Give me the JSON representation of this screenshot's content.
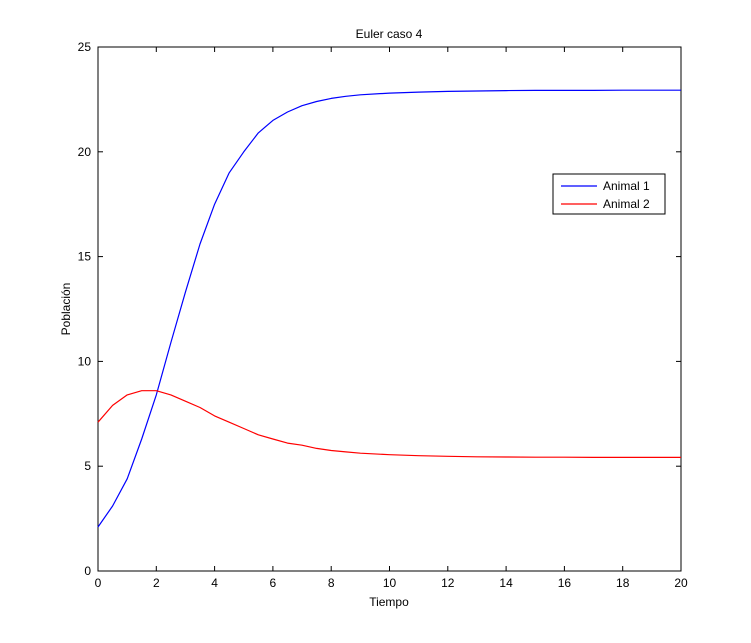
{
  "chart_data": {
    "type": "line",
    "title": "Euler caso 4",
    "xlabel": "Tiempo",
    "ylabel": "Población",
    "xlim": [
      0,
      20
    ],
    "ylim": [
      0,
      25
    ],
    "xticks": [
      0,
      2,
      4,
      6,
      8,
      10,
      12,
      14,
      16,
      18,
      20
    ],
    "yticks": [
      0,
      5,
      10,
      15,
      20,
      25
    ],
    "grid": false,
    "legend_position": "right",
    "series": [
      {
        "name": "Animal 1",
        "color": "#0000ff",
        "x": [
          0,
          0.5,
          1,
          1.5,
          2,
          2.5,
          3,
          3.5,
          4,
          4.5,
          5,
          5.5,
          6,
          6.5,
          7,
          7.5,
          8,
          8.5,
          9,
          10,
          11,
          12,
          13,
          14,
          15,
          16,
          17,
          18,
          19,
          20
        ],
        "y": [
          2.1,
          3.1,
          4.4,
          6.3,
          8.4,
          10.9,
          13.3,
          15.6,
          17.5,
          19.0,
          20.0,
          20.9,
          21.5,
          21.9,
          22.2,
          22.4,
          22.55,
          22.65,
          22.72,
          22.8,
          22.85,
          22.88,
          22.9,
          22.92,
          22.93,
          22.93,
          22.93,
          22.94,
          22.94,
          22.94
        ]
      },
      {
        "name": "Animal 2",
        "color": "#ff0000",
        "x": [
          0,
          0.5,
          1,
          1.5,
          2,
          2.5,
          3,
          3.5,
          4,
          4.5,
          5,
          5.5,
          6,
          6.5,
          7,
          7.5,
          8,
          8.5,
          9,
          10,
          11,
          12,
          13,
          14,
          15,
          16,
          17,
          18,
          19,
          20
        ],
        "y": [
          7.1,
          7.9,
          8.4,
          8.6,
          8.6,
          8.4,
          8.1,
          7.8,
          7.4,
          7.1,
          6.8,
          6.5,
          6.3,
          6.1,
          6.0,
          5.85,
          5.75,
          5.68,
          5.62,
          5.55,
          5.5,
          5.47,
          5.45,
          5.44,
          5.43,
          5.43,
          5.42,
          5.42,
          5.42,
          5.42
        ]
      }
    ]
  }
}
